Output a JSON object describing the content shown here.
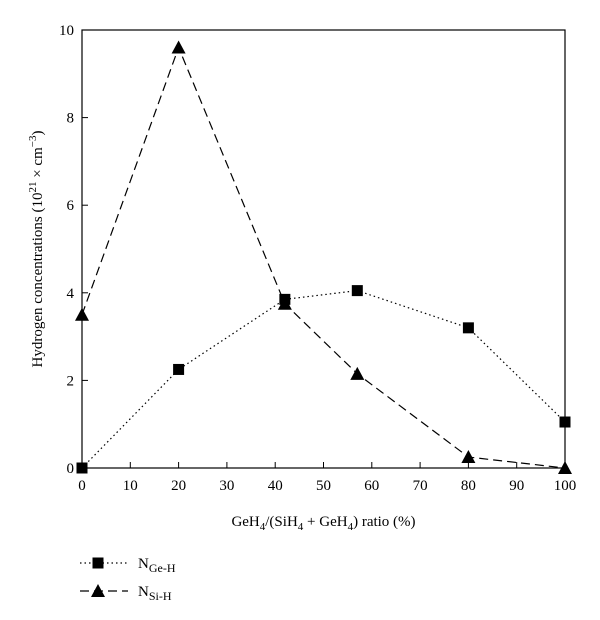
{
  "chart_data": {
    "type": "line",
    "xlabel": "GeH4/(SiH4 + GeH4) ratio (%)",
    "ylabel": "Hydrogen concentrations (10^21 × cm^−3)",
    "xlim": [
      0,
      100
    ],
    "ylim": [
      0,
      10
    ],
    "x_ticks": [
      0,
      10,
      20,
      30,
      40,
      50,
      60,
      70,
      80,
      90,
      100
    ],
    "y_ticks": [
      0,
      2,
      4,
      6,
      8,
      10
    ],
    "grid": false,
    "legend_position": "bottom-left",
    "series": [
      {
        "name": "NGe-H",
        "marker": "square",
        "line_style": "dotted",
        "x": [
          0,
          20,
          42,
          57,
          80,
          100
        ],
        "y": [
          0,
          2.25,
          3.85,
          4.05,
          3.2,
          1.05
        ]
      },
      {
        "name": "NSi-H",
        "marker": "triangle",
        "line_style": "dashed",
        "x": [
          0,
          20,
          42,
          57,
          80,
          100
        ],
        "y": [
          3.5,
          9.6,
          3.75,
          2.15,
          0.25,
          0
        ]
      }
    ]
  }
}
